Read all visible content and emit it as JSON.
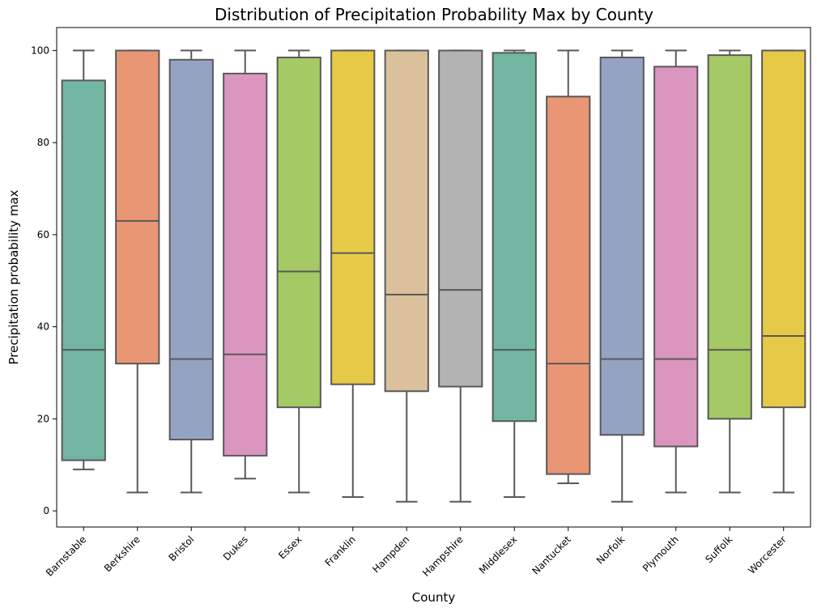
{
  "chart_data": {
    "type": "box",
    "title": "Distribution of Precipitation Probability Max by County",
    "xlabel": "County",
    "ylabel": "Precipitation probability max",
    "ylim": [
      -3.5,
      105
    ],
    "yticks": [
      0,
      20,
      40,
      60,
      80,
      100
    ],
    "grid": false,
    "legend": "none",
    "box_edge_color": "#595959",
    "categories": [
      "Barnstable",
      "Berkshire",
      "Bristol",
      "Dukes",
      "Essex",
      "Franklin",
      "Hampden",
      "Hampshire",
      "Middlesex",
      "Nantucket",
      "Norfolk",
      "Plymouth",
      "Suffolk",
      "Worcester"
    ],
    "series": [
      {
        "values": [
          {
            "whisker_low": 9,
            "q1": 11,
            "median": 35,
            "q3": 93.5,
            "whisker_high": 100
          },
          {
            "whisker_low": 4,
            "q1": 32,
            "median": 63,
            "q3": 100,
            "whisker_high": 100
          },
          {
            "whisker_low": 4,
            "q1": 15.5,
            "median": 33,
            "q3": 98,
            "whisker_high": 100
          },
          {
            "whisker_low": 7,
            "q1": 12,
            "median": 34,
            "q3": 95,
            "whisker_high": 100
          },
          {
            "whisker_low": 4,
            "q1": 22.5,
            "median": 52,
            "q3": 98.5,
            "whisker_high": 100
          },
          {
            "whisker_low": 3,
            "q1": 27.5,
            "median": 56,
            "q3": 100,
            "whisker_high": 100
          },
          {
            "whisker_low": 2,
            "q1": 26,
            "median": 47,
            "q3": 100,
            "whisker_high": 100
          },
          {
            "whisker_low": 2,
            "q1": 27,
            "median": 48,
            "q3": 100,
            "whisker_high": 100
          },
          {
            "whisker_low": 3,
            "q1": 19.5,
            "median": 35,
            "q3": 99.5,
            "whisker_high": 100
          },
          {
            "whisker_low": 6,
            "q1": 8,
            "median": 32,
            "q3": 90,
            "whisker_high": 100
          },
          {
            "whisker_low": 2,
            "q1": 16.5,
            "median": 33,
            "q3": 98.5,
            "whisker_high": 100
          },
          {
            "whisker_low": 4,
            "q1": 14,
            "median": 33,
            "q3": 96.5,
            "whisker_high": 100
          },
          {
            "whisker_low": 4,
            "q1": 20,
            "median": 35,
            "q3": 99,
            "whisker_high": 100
          },
          {
            "whisker_low": 4,
            "q1": 22.5,
            "median": 38,
            "q3": 100,
            "whisker_high": 100
          }
        ]
      }
    ],
    "colors": [
      "#72b6a1",
      "#e99675",
      "#95a3c3",
      "#db96c0",
      "#a4c965",
      "#e6ca47",
      "#dac19c",
      "#b3b3b3",
      "#72b6a1",
      "#e99675",
      "#95a3c3",
      "#db96c0",
      "#a4c965",
      "#e6ca47"
    ]
  }
}
